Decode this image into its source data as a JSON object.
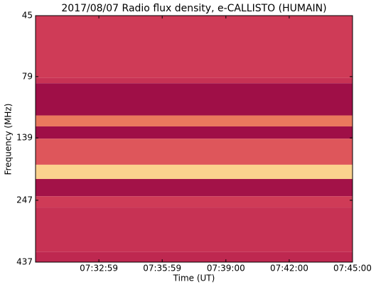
{
  "chart_data": {
    "type": "spectrogram",
    "title": "2017/08/07  Radio flux density, e-CALLISTO (HUMAIN)",
    "xlabel": "Time (UT)",
    "ylabel": "Frequency (MHz)",
    "xlim": [
      26999,
      27900
    ],
    "xticks": [
      {
        "value": 27179,
        "label": "07:32:59"
      },
      {
        "value": 27359,
        "label": "07:35:59"
      },
      {
        "value": 27540,
        "label": "07:39:00"
      },
      {
        "value": 27720,
        "label": "07:42:00"
      },
      {
        "value": 27900,
        "label": "07:45:00"
      }
    ],
    "ylim": [
      45,
      437
    ],
    "y_inverted": true,
    "yscale": "log",
    "yticks": [
      45,
      79,
      139,
      247,
      437
    ],
    "frequency_edges": [
      45,
      80,
      84,
      113,
      125,
      140,
      178,
      203,
      238,
      264,
      398,
      437
    ],
    "intensity": [
      0.35,
      0.3,
      0.05,
      0.55,
      0.05,
      0.45,
      0.8,
      0.08,
      0.35,
      0.3,
      0.25
    ],
    "colormap": [
      "#970a45",
      "#b51f4d",
      "#d8445a",
      "#f08a5e",
      "#fbd28e",
      "#fff5d0"
    ]
  }
}
